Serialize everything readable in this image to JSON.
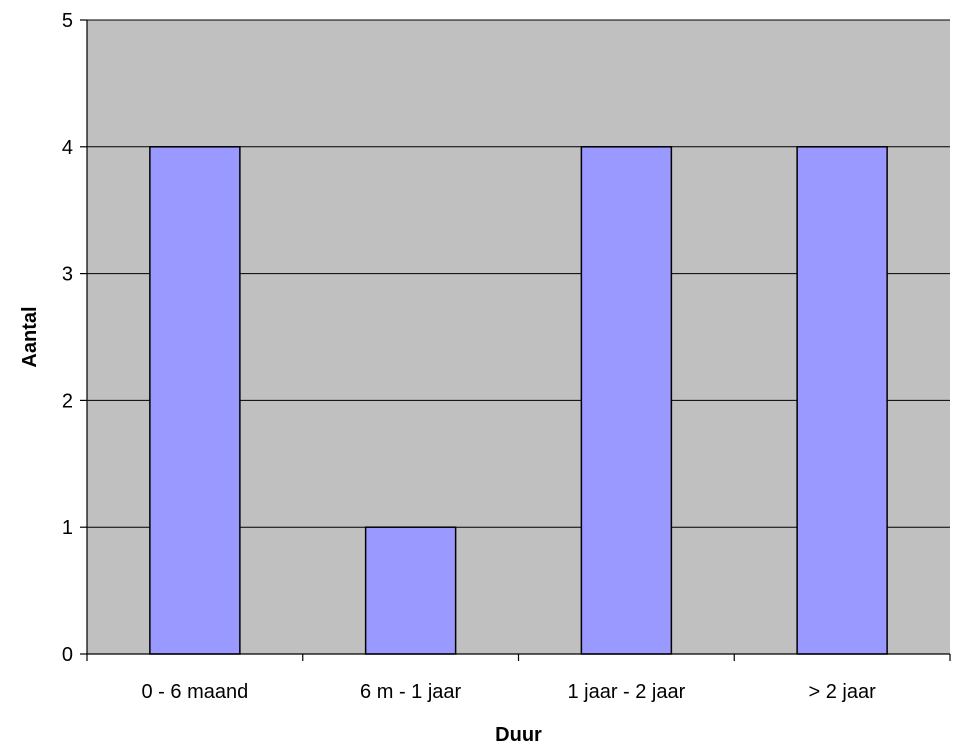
{
  "chart_data": {
    "type": "bar",
    "categories": [
      "0 - 6 maand",
      "6 m - 1 jaar",
      "1 jaar - 2 jaar",
      "> 2 jaar"
    ],
    "values": [
      4,
      1,
      4,
      4
    ],
    "xlabel": "Duur",
    "ylabel": "Aantal",
    "ylim": [
      0,
      5
    ],
    "yticks": [
      0,
      1,
      2,
      3,
      4,
      5
    ],
    "grid": true,
    "legend": "none",
    "colors": {
      "plot_background": "#c0c0c0",
      "bar_fill": "#9999ff",
      "bar_stroke": "#000000",
      "gridline": "#000000",
      "axis": "#000000"
    }
  }
}
